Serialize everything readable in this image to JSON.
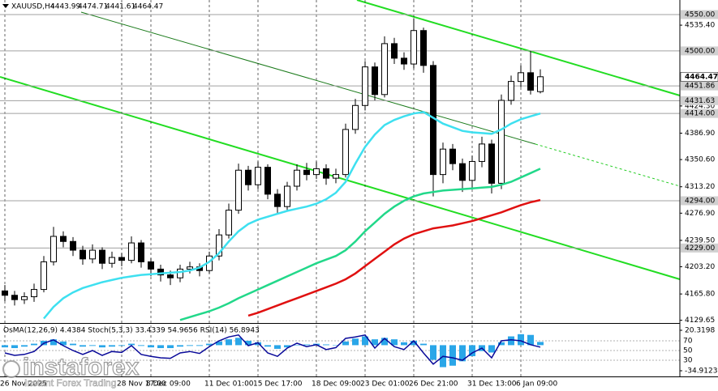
{
  "chart_data": {
    "type": "candlestick",
    "symbol": "XAUUSD,H4",
    "ohlc": [
      4443.99,
      4474.71,
      4441.61,
      4464.47
    ],
    "categories": [
      "26 Nov 2025",
      null,
      null,
      null,
      null,
      null,
      null,
      null,
      null,
      null,
      null,
      null,
      "28 Nov 17:00",
      null,
      null,
      "8 Dec 09:00",
      null,
      null,
      null,
      null,
      null,
      "11 Dec 01:00",
      null,
      null,
      null,
      null,
      "15 Dec 17:00",
      null,
      null,
      null,
      null,
      null,
      "18 Dec 09:00",
      null,
      null,
      null,
      null,
      "23 Dec 01:00",
      null,
      null,
      null,
      null,
      "26 Dec 21:00",
      null,
      null,
      null,
      null,
      null,
      "31 Dec 13:00",
      null,
      null,
      null,
      null,
      "6 Jan 09:00",
      null,
      null
    ],
    "open": [
      4170,
      4164,
      4158,
      4162,
      4172,
      4210,
      4245,
      4238,
      4226,
      4214,
      4226,
      4208,
      4216,
      4212,
      4236,
      4210,
      4200,
      4192,
      4188,
      4200,
      4203,
      4198,
      4218,
      4247,
      4281,
      4336,
      4316,
      4340,
      4303,
      4286,
      4314,
      4336,
      4330,
      4338,
      4325,
      4330,
      4392,
      4425,
      4478,
      4440,
      4510,
      4490,
      4482,
      4528,
      4480,
      4330,
      4365,
      4345,
      4322,
      4348,
      4372,
      4318,
      4432,
      4458,
      4470,
      4443.99
    ],
    "high": [
      4178,
      4170,
      4168,
      4180,
      4218,
      4258,
      4252,
      4244,
      4232,
      4234,
      4230,
      4224,
      4222,
      4245,
      4240,
      4215,
      4206,
      4198,
      4206,
      4210,
      4208,
      4224,
      4255,
      4290,
      4345,
      4342,
      4348,
      4344,
      4310,
      4320,
      4344,
      4346,
      4348,
      4344,
      4338,
      4400,
      4434,
      4486,
      4484,
      4520,
      4518,
      4498,
      4545,
      4532,
      4486,
      4374,
      4372,
      4352,
      4356,
      4382,
      4378,
      4440,
      4466,
      4480,
      4500,
      4474.71
    ],
    "low": [
      4156,
      4150,
      4152,
      4155,
      4168,
      4205,
      4230,
      4218,
      4206,
      4208,
      4200,
      4202,
      4204,
      4208,
      4202,
      4190,
      4183,
      4178,
      4182,
      4194,
      4190,
      4194,
      4212,
      4242,
      4276,
      4308,
      4310,
      4296,
      4276,
      4280,
      4308,
      4322,
      4324,
      4316,
      4318,
      4326,
      4386,
      4418,
      4432,
      4436,
      4482,
      4474,
      4476,
      4470,
      4300,
      4318,
      4336,
      4306,
      4312,
      4340,
      4304,
      4310,
      4426,
      4450,
      4440,
      4441.61
    ],
    "close": [
      4164,
      4158,
      4162,
      4172,
      4210,
      4245,
      4238,
      4226,
      4214,
      4226,
      4208,
      4216,
      4212,
      4236,
      4210,
      4200,
      4192,
      4188,
      4200,
      4203,
      4198,
      4218,
      4247,
      4281,
      4336,
      4316,
      4340,
      4303,
      4286,
      4314,
      4336,
      4330,
      4338,
      4325,
      4330,
      4392,
      4425,
      4478,
      4440,
      4510,
      4490,
      4482,
      4528,
      4480,
      4330,
      4365,
      4345,
      4322,
      4348,
      4372,
      4318,
      4432,
      4458,
      4470,
      4446,
      4464.47
    ],
    "up_color": "#ffffff",
    "down_color": "#000000",
    "moving_averages": [
      {
        "color": "#3ee0f0",
        "values": [
          null,
          null,
          null,
          null,
          4132,
          4148,
          4160,
          4168,
          4174,
          4178,
          4182,
          4185,
          4188,
          4190,
          4192,
          4193,
          4194,
          4195,
          4196,
          4198,
          4202,
          4210,
          4222,
          4238,
          4252,
          4262,
          4268,
          4272,
          4276,
          4280,
          4283,
          4286,
          4290,
          4296,
          4305,
          4320,
          4345,
          4368,
          4385,
          4398,
          4405,
          4410,
          4414,
          4416,
          4408,
          4400,
          4395,
          4390,
          4388,
          4387,
          4386,
          4392,
          4400,
          4406,
          4410,
          4414
        ]
      },
      {
        "color": "#22d88a",
        "values": [
          null,
          null,
          null,
          null,
          null,
          null,
          null,
          null,
          null,
          null,
          null,
          null,
          null,
          null,
          null,
          null,
          null,
          null,
          4130,
          4134,
          4138,
          4142,
          4147,
          4153,
          4160,
          4166,
          4172,
          4178,
          4184,
          4190,
          4196,
          4202,
          4208,
          4213,
          4218,
          4226,
          4238,
          4252,
          4264,
          4276,
          4286,
          4294,
          4300,
          4304,
          4306,
          4308,
          4309,
          4310,
          4311,
          4312,
          4313,
          4316,
          4320,
          4326,
          4332,
          4338
        ]
      },
      {
        "color": "#e01010",
        "values": [
          null,
          null,
          null,
          null,
          null,
          null,
          null,
          null,
          null,
          null,
          null,
          null,
          null,
          null,
          null,
          null,
          null,
          null,
          null,
          null,
          null,
          null,
          null,
          null,
          null,
          4136,
          4140,
          4145,
          4150,
          4155,
          4160,
          4165,
          4170,
          4175,
          4180,
          4186,
          4194,
          4204,
          4214,
          4224,
          4234,
          4242,
          4248,
          4252,
          4256,
          4258,
          4260,
          4263,
          4266,
          4270,
          4274,
          4278,
          4283,
          4288,
          4292,
          4295
        ]
      }
    ],
    "ylim": [
      4127,
      4570
    ],
    "yticks": [
      {
        "value": 4535.4,
        "label": "4535.40"
      },
      {
        "value": 4424.3,
        "label": "4424.30"
      },
      {
        "value": 4386.9,
        "label": "4386.90"
      },
      {
        "value": 4350.6,
        "label": "4350.60"
      },
      {
        "value": 4313.2,
        "label": "4313.20"
      },
      {
        "value": 4276.9,
        "label": "4276.90"
      },
      {
        "value": 4239.5,
        "label": "4239.50"
      },
      {
        "value": 4203.2,
        "label": "4203.20"
      },
      {
        "value": 4165.8,
        "label": "4165.80"
      },
      4129.65
    ],
    "levels": [
      {
        "value": 4550,
        "label": "4550.00"
      },
      {
        "value": 4500,
        "label": "4500.00"
      },
      4451.86,
      4431.63,
      {
        "value": 4414,
        "label": "4414.00"
      },
      {
        "value": 4294,
        "label": "4294.00"
      },
      {
        "value": 4229,
        "label": "4229.00"
      }
    ],
    "last_price": 4464.47,
    "grid": true,
    "indicator": {
      "label": "OsMA(12,26,9) 4.4384 Stoch(5,3,3) 33.4339 54.9656 RSI(14) 56.8943",
      "ylim": [
        -34.9123,
        20.3198
      ],
      "yticks": [
        20.3198,
        -34.9123
      ],
      "histogram_color": "#2aa6e8",
      "osma": [
        -3,
        -4,
        -2,
        2,
        6,
        8,
        5,
        2,
        -2,
        -1,
        -3,
        -2,
        -1,
        2,
        -1,
        -3,
        -4,
        -4,
        -2,
        -1,
        -1,
        2,
        5,
        8,
        10,
        6,
        4,
        -2,
        -5,
        -3,
        0,
        1,
        2,
        1,
        0,
        5,
        9,
        12,
        8,
        10,
        8,
        4,
        6,
        2,
        -20,
        -30,
        -28,
        -22,
        -15,
        -8,
        -10,
        4,
        12,
        15,
        14,
        4.4384
      ],
      "rsi_color": "#0a0a9a",
      "rsi_lim": [
        0,
        100
      ],
      "rsi_ticks": [
        70,
        50,
        30
      ],
      "rsi": [
        45,
        40,
        42,
        48,
        65,
        72,
        60,
        50,
        42,
        50,
        40,
        48,
        46,
        60,
        42,
        38,
        35,
        34,
        45,
        48,
        44,
        58,
        70,
        78,
        82,
        60,
        66,
        45,
        38,
        55,
        65,
        58,
        62,
        52,
        56,
        75,
        78,
        82,
        55,
        75,
        58,
        52,
        70,
        45,
        22,
        38,
        35,
        30,
        45,
        55,
        35,
        70,
        72,
        70,
        62,
        57
      ]
    },
    "watermark": {
      "brand": "instaforex",
      "tagline": "Instant Forex Trading"
    }
  }
}
